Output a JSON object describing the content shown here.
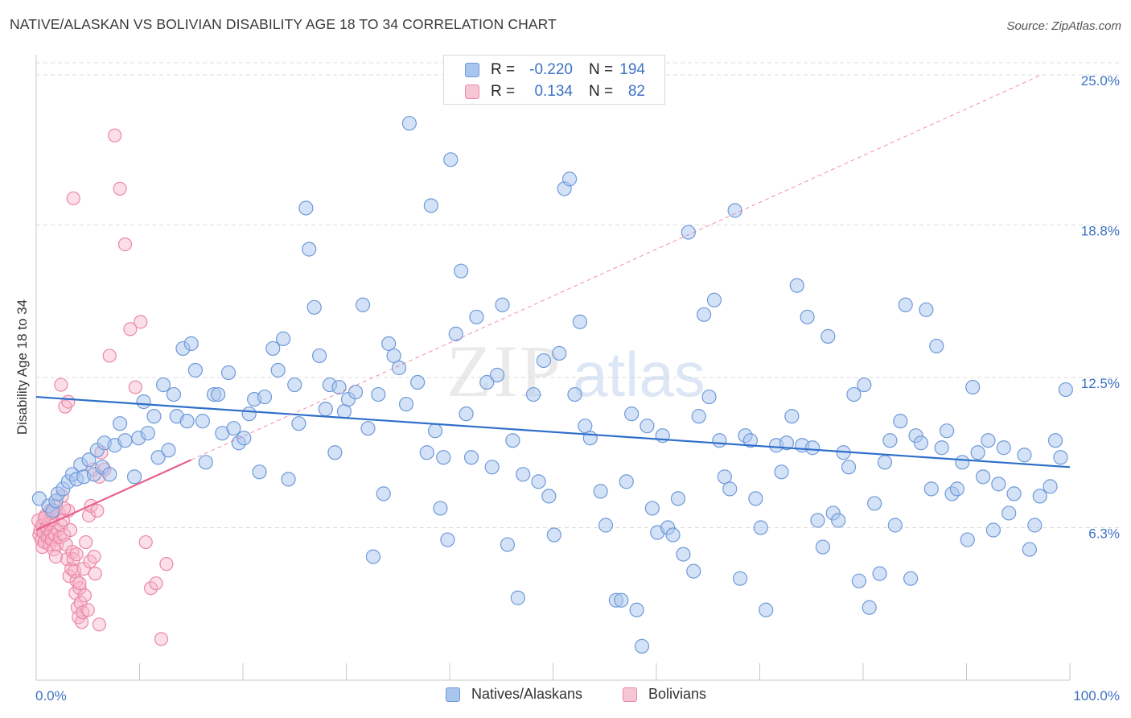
{
  "title": "NATIVE/ALASKAN VS BOLIVIAN DISABILITY AGE 18 TO 34 CORRELATION CHART",
  "source": "Source: ZipAtlas.com",
  "watermark": {
    "zip": "ZIP",
    "atlas": "atlas"
  },
  "colors": {
    "blue_fill": "#a9c6ef",
    "blue_stroke": "#6f9ad8",
    "blue_line": "#2f6fc9",
    "pink_fill": "#f7b6c9",
    "pink_stroke": "#eb88a6",
    "pink_line": "#e8608a",
    "grid": "#dcdcdc",
    "axis_text_blue": "#3d72c4"
  },
  "legend_top": [
    {
      "r_label": "R =",
      "r_value": "-0.220",
      "n_label": "N =",
      "n_value": "194"
    },
    {
      "r_label": "R =",
      "r_value": "0.134",
      "n_label": "N =",
      "n_value": "82"
    }
  ],
  "legend_bottom": [
    "Natives/Alaskans",
    "Bolivians"
  ],
  "chart_data": {
    "type": "scatter",
    "title": "NATIVE/ALASKAN VS BOLIVIAN DISABILITY AGE 18 TO 34 CORRELATION CHART",
    "xlabel": "",
    "ylabel": "Disability Age 18 to 34",
    "xlim": [
      0,
      100
    ],
    "ylim": [
      0,
      25.5
    ],
    "x_tick_labels": [
      "0.0%",
      "100.0%"
    ],
    "y_ticks": [
      6.3,
      12.5,
      18.8,
      25.0
    ],
    "y_tick_labels": [
      "6.3%",
      "12.5%",
      "18.8%",
      "25.0%"
    ],
    "grid": "horizontal dashed",
    "legend_placement": "bottom",
    "series": [
      {
        "name": "Natives/Alaskans",
        "R": -0.22,
        "N": 194,
        "trend": {
          "x": [
            0,
            100
          ],
          "y": [
            11.7,
            8.8
          ]
        },
        "points": [
          [
            0.3,
            7.5
          ],
          [
            1.2,
            7.2
          ],
          [
            1.6,
            7.0
          ],
          [
            1.9,
            7.4
          ],
          [
            2.1,
            7.7
          ],
          [
            2.6,
            7.9
          ],
          [
            3.1,
            8.2
          ],
          [
            3.5,
            8.5
          ],
          [
            3.9,
            8.3
          ],
          [
            4.3,
            8.9
          ],
          [
            4.6,
            8.4
          ],
          [
            5.1,
            9.1
          ],
          [
            5.6,
            8.5
          ],
          [
            5.9,
            9.5
          ],
          [
            6.4,
            8.8
          ],
          [
            6.6,
            9.8
          ],
          [
            7.1,
            8.5
          ],
          [
            7.6,
            9.7
          ],
          [
            8.1,
            10.6
          ],
          [
            8.6,
            9.9
          ],
          [
            9.5,
            8.4
          ],
          [
            9.9,
            10.0
          ],
          [
            10.4,
            11.5
          ],
          [
            10.8,
            10.2
          ],
          [
            11.4,
            10.9
          ],
          [
            11.8,
            9.2
          ],
          [
            12.3,
            12.2
          ],
          [
            12.8,
            9.5
          ],
          [
            13.3,
            11.8
          ],
          [
            13.6,
            10.9
          ],
          [
            14.2,
            13.7
          ],
          [
            14.6,
            10.7
          ],
          [
            15.0,
            13.9
          ],
          [
            15.4,
            12.8
          ],
          [
            16.1,
            10.7
          ],
          [
            16.4,
            9.0
          ],
          [
            17.2,
            11.8
          ],
          [
            17.6,
            11.8
          ],
          [
            18.0,
            10.2
          ],
          [
            18.6,
            12.7
          ],
          [
            19.1,
            10.4
          ],
          [
            19.6,
            9.8
          ],
          [
            20.1,
            10.0
          ],
          [
            20.6,
            11.0
          ],
          [
            21.1,
            11.6
          ],
          [
            21.6,
            8.6
          ],
          [
            22.1,
            11.7
          ],
          [
            22.9,
            13.7
          ],
          [
            23.4,
            12.8
          ],
          [
            23.9,
            14.1
          ],
          [
            24.4,
            8.3
          ],
          [
            25.0,
            12.2
          ],
          [
            25.4,
            10.6
          ],
          [
            26.1,
            19.5
          ],
          [
            26.4,
            17.8
          ],
          [
            26.9,
            15.4
          ],
          [
            27.4,
            13.4
          ],
          [
            28.0,
            11.2
          ],
          [
            28.4,
            12.2
          ],
          [
            28.9,
            9.4
          ],
          [
            29.3,
            12.1
          ],
          [
            29.8,
            11.1
          ],
          [
            30.2,
            11.6
          ],
          [
            30.9,
            11.9
          ],
          [
            31.6,
            15.5
          ],
          [
            32.1,
            10.4
          ],
          [
            32.6,
            5.1
          ],
          [
            33.1,
            11.8
          ],
          [
            33.6,
            7.7
          ],
          [
            34.1,
            13.9
          ],
          [
            34.6,
            13.4
          ],
          [
            35.1,
            12.9
          ],
          [
            35.8,
            11.4
          ],
          [
            36.1,
            23.0
          ],
          [
            36.9,
            12.3
          ],
          [
            37.8,
            9.4
          ],
          [
            38.2,
            19.6
          ],
          [
            38.6,
            10.3
          ],
          [
            39.1,
            7.1
          ],
          [
            39.4,
            9.2
          ],
          [
            39.8,
            5.8
          ],
          [
            40.1,
            21.5
          ],
          [
            40.6,
            14.3
          ],
          [
            41.1,
            16.9
          ],
          [
            41.6,
            11.0
          ],
          [
            42.1,
            9.2
          ],
          [
            42.6,
            15.0
          ],
          [
            43.6,
            12.3
          ],
          [
            44.1,
            8.8
          ],
          [
            44.6,
            12.6
          ],
          [
            45.1,
            15.5
          ],
          [
            45.6,
            5.6
          ],
          [
            46.1,
            9.9
          ],
          [
            46.6,
            3.4
          ],
          [
            47.1,
            8.5
          ],
          [
            48.1,
            11.8
          ],
          [
            48.6,
            8.2
          ],
          [
            49.1,
            13.2
          ],
          [
            49.6,
            7.6
          ],
          [
            50.1,
            6.0
          ],
          [
            50.6,
            13.5
          ],
          [
            51.1,
            20.3
          ],
          [
            51.6,
            20.7
          ],
          [
            52.1,
            11.8
          ],
          [
            52.6,
            14.8
          ],
          [
            53.1,
            10.5
          ],
          [
            53.6,
            10.0
          ],
          [
            54.6,
            7.8
          ],
          [
            55.1,
            6.4
          ],
          [
            56.1,
            3.3
          ],
          [
            56.6,
            3.3
          ],
          [
            57.1,
            8.2
          ],
          [
            57.6,
            11.0
          ],
          [
            58.1,
            2.9
          ],
          [
            58.6,
            1.4
          ],
          [
            59.1,
            10.5
          ],
          [
            59.6,
            7.1
          ],
          [
            60.1,
            6.1
          ],
          [
            60.6,
            10.1
          ],
          [
            61.1,
            6.3
          ],
          [
            61.6,
            6.0
          ],
          [
            62.1,
            7.5
          ],
          [
            62.6,
            5.2
          ],
          [
            63.1,
            18.5
          ],
          [
            63.6,
            4.5
          ],
          [
            64.1,
            10.9
          ],
          [
            64.6,
            15.1
          ],
          [
            65.1,
            11.7
          ],
          [
            65.6,
            15.7
          ],
          [
            66.1,
            9.9
          ],
          [
            66.6,
            8.4
          ],
          [
            67.1,
            7.9
          ],
          [
            67.6,
            19.4
          ],
          [
            68.1,
            4.2
          ],
          [
            68.6,
            10.1
          ],
          [
            69.1,
            9.9
          ],
          [
            69.6,
            7.5
          ],
          [
            70.1,
            6.3
          ],
          [
            70.6,
            2.9
          ],
          [
            71.6,
            9.7
          ],
          [
            72.1,
            8.6
          ],
          [
            72.6,
            9.8
          ],
          [
            73.1,
            10.9
          ],
          [
            73.6,
            16.3
          ],
          [
            74.1,
            9.7
          ],
          [
            74.6,
            15.0
          ],
          [
            75.1,
            9.6
          ],
          [
            75.6,
            6.6
          ],
          [
            76.1,
            5.5
          ],
          [
            76.6,
            14.2
          ],
          [
            77.1,
            6.9
          ],
          [
            77.6,
            6.6
          ],
          [
            78.1,
            9.4
          ],
          [
            78.6,
            8.8
          ],
          [
            79.1,
            11.8
          ],
          [
            79.6,
            4.1
          ],
          [
            80.1,
            12.2
          ],
          [
            80.6,
            3.0
          ],
          [
            81.1,
            7.3
          ],
          [
            81.6,
            4.4
          ],
          [
            82.1,
            9.0
          ],
          [
            82.6,
            9.9
          ],
          [
            83.1,
            6.4
          ],
          [
            83.6,
            10.7
          ],
          [
            84.1,
            15.5
          ],
          [
            84.6,
            4.2
          ],
          [
            85.1,
            10.1
          ],
          [
            85.6,
            9.8
          ],
          [
            86.1,
            15.3
          ],
          [
            86.6,
            7.9
          ],
          [
            87.1,
            13.8
          ],
          [
            87.6,
            9.6
          ],
          [
            88.1,
            10.3
          ],
          [
            88.6,
            7.7
          ],
          [
            89.1,
            7.9
          ],
          [
            89.6,
            9.0
          ],
          [
            90.1,
            5.8
          ],
          [
            90.6,
            12.1
          ],
          [
            91.1,
            9.4
          ],
          [
            91.6,
            8.4
          ],
          [
            92.1,
            9.9
          ],
          [
            92.6,
            6.2
          ],
          [
            93.1,
            8.1
          ],
          [
            93.6,
            9.6
          ],
          [
            94.1,
            6.9
          ],
          [
            94.6,
            7.7
          ],
          [
            95.6,
            9.3
          ],
          [
            96.1,
            5.4
          ],
          [
            96.6,
            6.4
          ],
          [
            97.1,
            7.6
          ],
          [
            98.1,
            8.0
          ],
          [
            98.6,
            9.9
          ],
          [
            99.1,
            9.2
          ],
          [
            99.6,
            12.0
          ]
        ]
      },
      {
        "name": "Bolivians",
        "R": 0.134,
        "N": 82,
        "trend": {
          "x": [
            0,
            15
          ],
          "y": [
            6.2,
            9.1
          ]
        },
        "points": [
          [
            0.2,
            6.6
          ],
          [
            0.3,
            6.0
          ],
          [
            0.4,
            6.2
          ],
          [
            0.5,
            5.8
          ],
          [
            0.6,
            6.4
          ],
          [
            0.6,
            5.5
          ],
          [
            0.7,
            6.1
          ],
          [
            0.8,
            5.7
          ],
          [
            0.9,
            6.8
          ],
          [
            1.0,
            6.3
          ],
          [
            1.1,
            5.9
          ],
          [
            1.2,
            6.5
          ],
          [
            1.3,
            5.6
          ],
          [
            1.3,
            7.0
          ],
          [
            1.4,
            6.1
          ],
          [
            1.5,
            5.8
          ],
          [
            1.6,
            6.6
          ],
          [
            1.7,
            5.4
          ],
          [
            1.8,
            6.0
          ],
          [
            1.9,
            7.2
          ],
          [
            2.0,
            5.6
          ],
          [
            2.1,
            6.2
          ],
          [
            2.2,
            6.9
          ],
          [
            2.3,
            5.9
          ],
          [
            2.4,
            6.4
          ],
          [
            2.5,
            7.6
          ],
          [
            2.6,
            6.6
          ],
          [
            2.7,
            6.0
          ],
          [
            2.8,
            11.3
          ],
          [
            2.9,
            5.6
          ],
          [
            3.0,
            5.0
          ],
          [
            3.1,
            7.0
          ],
          [
            3.2,
            4.3
          ],
          [
            3.3,
            6.2
          ],
          [
            3.4,
            4.6
          ],
          [
            3.5,
            5.3
          ],
          [
            3.6,
            5.0
          ],
          [
            3.7,
            4.5
          ],
          [
            3.8,
            3.6
          ],
          [
            3.9,
            4.1
          ],
          [
            4.0,
            3.0
          ],
          [
            4.1,
            2.6
          ],
          [
            4.2,
            3.8
          ],
          [
            4.3,
            3.2
          ],
          [
            4.4,
            2.4
          ],
          [
            4.5,
            2.8
          ],
          [
            4.6,
            4.6
          ],
          [
            4.7,
            3.5
          ],
          [
            4.8,
            5.7
          ],
          [
            5.0,
            2.9
          ],
          [
            5.1,
            6.8
          ],
          [
            5.2,
            4.9
          ],
          [
            5.3,
            7.2
          ],
          [
            5.5,
            8.7
          ],
          [
            5.6,
            5.1
          ],
          [
            5.7,
            4.4
          ],
          [
            5.9,
            7.0
          ],
          [
            6.1,
            2.3
          ],
          [
            6.3,
            9.4
          ],
          [
            6.6,
            8.7
          ],
          [
            7.1,
            13.4
          ],
          [
            7.6,
            22.5
          ],
          [
            8.1,
            20.3
          ],
          [
            8.6,
            18.0
          ],
          [
            9.1,
            14.5
          ],
          [
            9.6,
            12.1
          ],
          [
            10.1,
            14.8
          ],
          [
            10.6,
            5.7
          ],
          [
            11.1,
            3.8
          ],
          [
            11.6,
            4.0
          ],
          [
            12.1,
            1.7
          ],
          [
            12.6,
            4.8
          ],
          [
            3.1,
            11.5
          ],
          [
            3.6,
            19.9
          ],
          [
            2.4,
            12.2
          ],
          [
            6.1,
            8.4
          ],
          [
            1.5,
            6.9
          ],
          [
            2.7,
            7.1
          ],
          [
            3.9,
            5.2
          ],
          [
            4.2,
            4.0
          ],
          [
            0.8,
            6.7
          ],
          [
            1.9,
            5.1
          ]
        ]
      }
    ]
  }
}
